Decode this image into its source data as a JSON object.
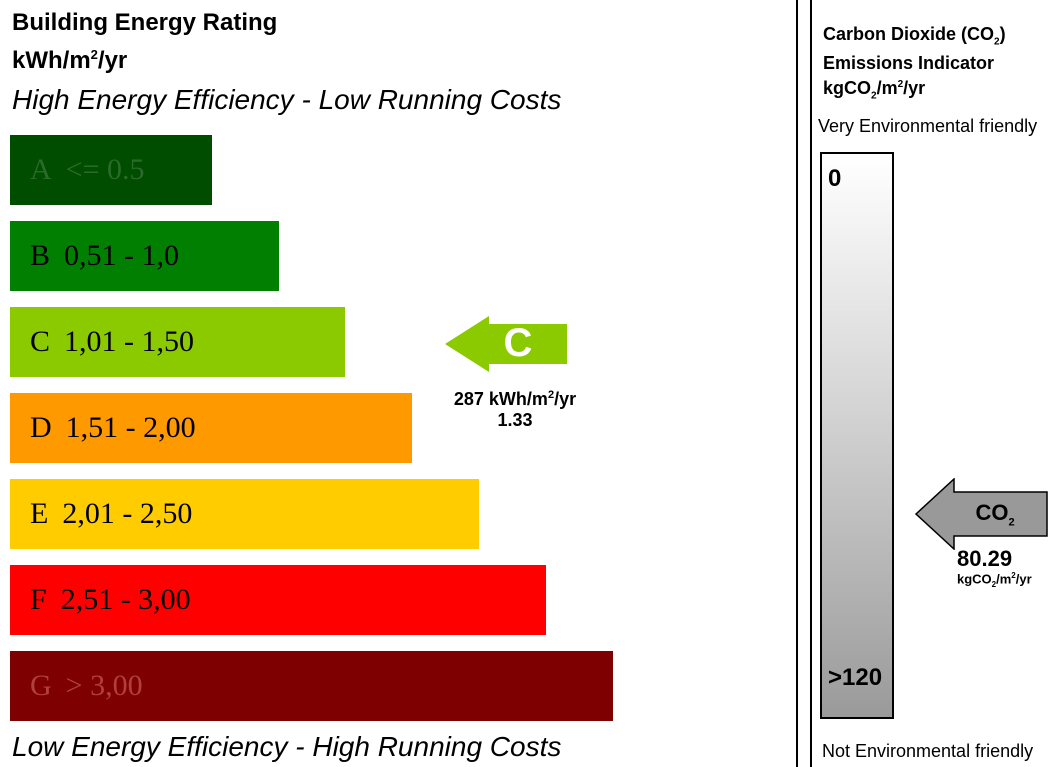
{
  "header": {
    "title": "Building Energy Rating",
    "unit_prefix": "kWh/m",
    "unit_sup": "2",
    "unit_suffix": "/yr",
    "top_tagline": "High Energy Efficiency - Low Running Costs",
    "bottom_tagline": "Low Energy Efficiency - High Running Costs"
  },
  "bands": [
    {
      "letter": "A",
      "range": "<= 0.5",
      "color": "#004d00",
      "text_color": "#2a6a2a"
    },
    {
      "letter": "B",
      "range": "0,51 - 1,0",
      "color": "#007f00",
      "text_color": "#000000"
    },
    {
      "letter": "C",
      "range": "1,01 - 1,50",
      "color": "#8cca00",
      "text_color": "#000000"
    },
    {
      "letter": "D",
      "range": "1,51 - 2,00",
      "color": "#ff9900",
      "text_color": "#000000"
    },
    {
      "letter": "E",
      "range": "2,01 - 2,50",
      "color": "#ffcc00",
      "text_color": "#000000"
    },
    {
      "letter": "F",
      "range": "2,51 - 3,00",
      "color": "#ff0000",
      "text_color": "#000000"
    },
    {
      "letter": "G",
      "range": "> 3,00",
      "color": "#7f0000",
      "text_color": "#b04040"
    }
  ],
  "rating": {
    "letter": "C",
    "color": "#8cca00",
    "value_prefix": "287 kWh/m",
    "value_sup": "2",
    "value_suffix": "/yr",
    "score": "1.33"
  },
  "co2": {
    "title_line1": "Carbon Dioxide (CO",
    "title_line1_sub": "2",
    "title_line1_end": ")",
    "title_line2": "Emissions Indicator",
    "unit_a": "kgCO",
    "unit_sub": "2",
    "unit_b": "/m",
    "unit_sup": "2",
    "unit_c": "/yr",
    "top_label": "Very Environmental friendly",
    "bottom_label": "Not Environmental friendly",
    "scale_min": "0",
    "scale_max": ">120",
    "arrow_label": "CO",
    "arrow_label_sub": "2",
    "arrow_color": "#999999",
    "value": "80.29",
    "value_unit_a": "kgCO",
    "value_unit_sub": "2",
    "value_unit_b": "/m",
    "value_unit_sup": "2",
    "value_unit_c": "/yr"
  }
}
